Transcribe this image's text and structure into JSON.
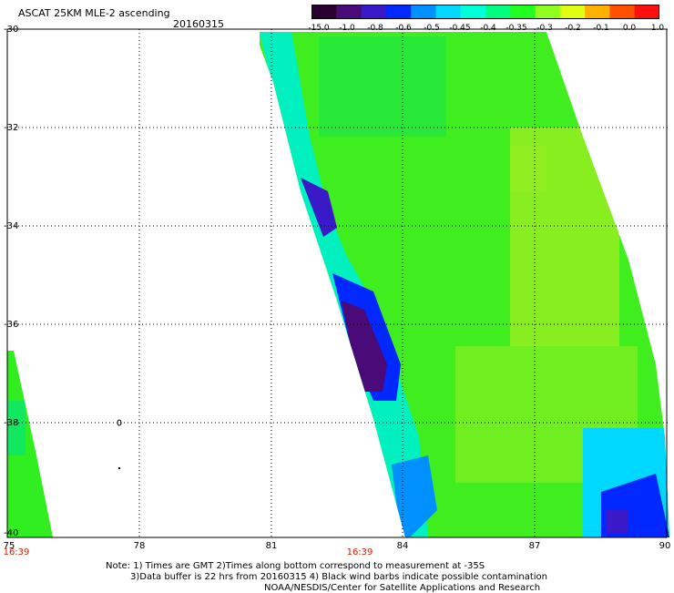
{
  "header": {
    "title": "ASCAT 25KM MLE-2 ascending",
    "date": "20160315"
  },
  "colorbar": {
    "labels": [
      "-15.0",
      "-1.0",
      "-0.8",
      "-0.6",
      "-0.5",
      "-0.45",
      "-0.4",
      "-0.35",
      "-0.3",
      "-0.2",
      "-0.1",
      "0.0",
      "1.0"
    ],
    "colors": [
      "#2a0030",
      "#4a0a78",
      "#3a1ac8",
      "#0028ff",
      "#0090ff",
      "#00d8ff",
      "#00ffd8",
      "#00ff80",
      "#20ff20",
      "#90ff20",
      "#e0ff10",
      "#ffb000",
      "#ff5000",
      "#ff1010"
    ]
  },
  "map": {
    "lat_labels": [
      "-30",
      "-32",
      "-34",
      "-36",
      "-38",
      "-40"
    ],
    "lon_labels": [
      "75",
      "78",
      "81",
      "84",
      "87",
      "90"
    ],
    "times": [
      "16:39",
      "16:39"
    ]
  },
  "notes": {
    "line1": "Note: 1) Times are GMT 2)Times along bottom correspond to measurement at -35S",
    "line2": "3)Data buffer is 22 hrs from 20160315 4) Black wind barbs indicate possible contamination",
    "line3": "NOAA/NESDIS/Center for Satellite Applications and Research"
  }
}
